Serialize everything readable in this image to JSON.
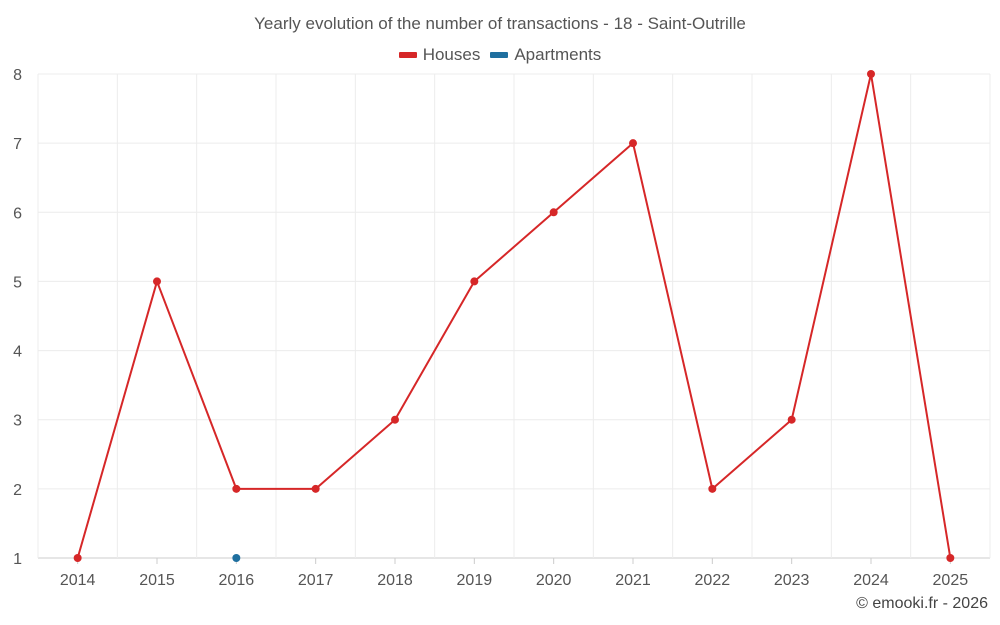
{
  "chart_data": {
    "type": "line",
    "title": "Yearly evolution of the number of transactions - 18 - Saint-Outrille",
    "xlabel": "",
    "ylabel": "",
    "categories": [
      "2014",
      "2015",
      "2016",
      "2017",
      "2018",
      "2019",
      "2020",
      "2021",
      "2022",
      "2023",
      "2024",
      "2025"
    ],
    "ylim": [
      1,
      8
    ],
    "yticks": [
      "1",
      "2",
      "3",
      "4",
      "5",
      "6",
      "7",
      "8"
    ],
    "grid": true,
    "legend_position": "top-center",
    "series": [
      {
        "name": "Houses",
        "color": "#d62728",
        "values": [
          1,
          5,
          2,
          2,
          3,
          5,
          6,
          7,
          2,
          3,
          8,
          1
        ]
      },
      {
        "name": "Apartments",
        "color": "#1f6f9f",
        "values": [
          null,
          null,
          1,
          null,
          null,
          null,
          null,
          null,
          null,
          null,
          null,
          null
        ]
      }
    ]
  },
  "footer": {
    "credit": "© emooki.fr - 2026"
  }
}
